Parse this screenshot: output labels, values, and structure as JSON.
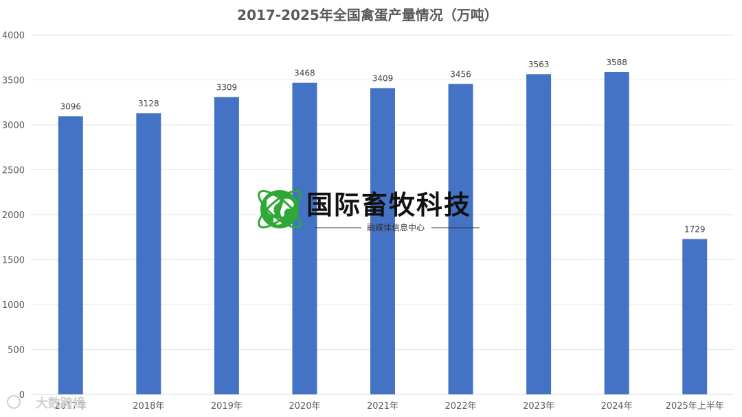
{
  "chart_data": {
    "type": "bar",
    "title": "2017-2025年全国禽蛋产量情况（万吨）",
    "categories": [
      "2017年",
      "2018年",
      "2019年",
      "2020年",
      "2021年",
      "2022年",
      "2023年",
      "2024年",
      "2025年上半年"
    ],
    "values": [
      3096,
      3128,
      3309,
      3468,
      3409,
      3456,
      3563,
      3588,
      1729
    ],
    "data_labels": [
      "3096",
      "3128",
      "3309",
      "3468",
      "3409",
      "3456",
      "3563",
      "3588",
      "1729"
    ],
    "ylim": [
      0,
      4000
    ],
    "yticks": [
      "0",
      "500",
      "1000",
      "1500",
      "2000",
      "2500",
      "3000",
      "3500",
      "4000"
    ],
    "xlabel": "",
    "ylabel": "",
    "grid": true,
    "legend": "none",
    "colors": {
      "bar": "#4472C4",
      "grid": "#e6e6e6",
      "text": "#595959"
    }
  },
  "watermark": {
    "title": "国际畜牧科技",
    "subtitle": "融媒体信息中心",
    "corner": "大数跨境"
  }
}
